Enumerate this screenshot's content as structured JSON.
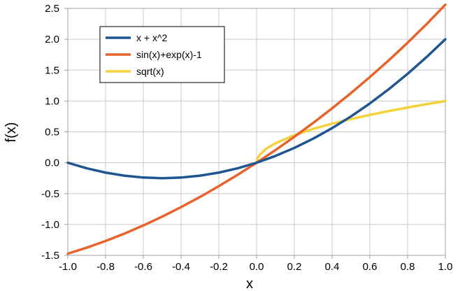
{
  "chart_data": {
    "type": "line",
    "xlabel": "x",
    "ylabel": "f(x)",
    "xlim": [
      -1.0,
      1.0
    ],
    "ylim": [
      -1.5,
      2.5
    ],
    "x_ticks": [
      -1.0,
      -0.8,
      -0.6,
      -0.4,
      -0.2,
      0.0,
      0.2,
      0.4,
      0.6,
      0.8,
      1.0
    ],
    "y_ticks": [
      -1.5,
      -1.0,
      -0.5,
      0.0,
      0.5,
      1.0,
      1.5,
      2.0,
      2.5
    ],
    "x_tick_labels": [
      "-1.0",
      "-0.8",
      "-0.6",
      "-0.4",
      "-0.2",
      "0.0",
      "0.2",
      "0.4",
      "0.6",
      "0.8",
      "1.0"
    ],
    "y_tick_labels": [
      "-1.5",
      "-1.0",
      "-0.5",
      "0.0",
      "0.5",
      "1.0",
      "1.5",
      "2.0",
      "2.5"
    ],
    "grid": true,
    "legend_position": "top-left",
    "series": [
      {
        "name": "x + x^2",
        "color": "#1f5591",
        "x": [
          -1.0,
          -0.9,
          -0.8,
          -0.7,
          -0.6,
          -0.5,
          -0.4,
          -0.3,
          -0.2,
          -0.1,
          0.0,
          0.1,
          0.2,
          0.3,
          0.4,
          0.5,
          0.6,
          0.7,
          0.8,
          0.9,
          1.0
        ],
        "y": [
          0.0,
          -0.09,
          -0.16,
          -0.21,
          -0.24,
          -0.25,
          -0.24,
          -0.21,
          -0.16,
          -0.09,
          0.0,
          0.11,
          0.24,
          0.39,
          0.56,
          0.75,
          0.96,
          1.19,
          1.44,
          1.71,
          2.0
        ]
      },
      {
        "name": "sin(x)+exp(x)-1",
        "color": "#e8632b",
        "x": [
          -1.0,
          -0.9,
          -0.8,
          -0.7,
          -0.6,
          -0.5,
          -0.4,
          -0.3,
          -0.2,
          -0.1,
          0.0,
          0.1,
          0.2,
          0.3,
          0.4,
          0.5,
          0.6,
          0.7,
          0.8,
          0.9,
          1.0
        ],
        "y": [
          -1.473,
          -1.376,
          -1.268,
          -1.148,
          -1.016,
          -0.873,
          -0.719,
          -0.555,
          -0.38,
          -0.195,
          0.0,
          0.205,
          0.42,
          0.645,
          0.881,
          1.128,
          1.387,
          1.658,
          1.943,
          2.243,
          2.56
        ]
      },
      {
        "name": "sqrt(x)",
        "color": "#f5d13b",
        "x": [
          0.0,
          0.005,
          0.02,
          0.05,
          0.1,
          0.2,
          0.3,
          0.4,
          0.5,
          0.6,
          0.7,
          0.8,
          0.9,
          1.0
        ],
        "y": [
          0.0,
          0.071,
          0.141,
          0.224,
          0.316,
          0.447,
          0.548,
          0.632,
          0.707,
          0.775,
          0.837,
          0.894,
          0.949,
          1.0
        ]
      }
    ]
  }
}
